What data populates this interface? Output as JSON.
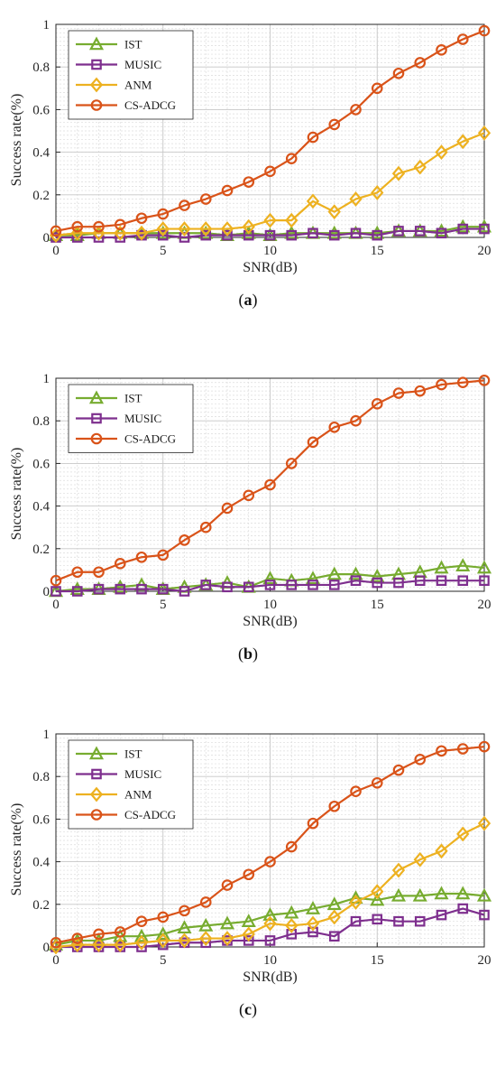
{
  "styles": {
    "IST": {
      "color": "#77AC30",
      "marker": "triangle"
    },
    "MUSIC": {
      "color": "#7E2F8E",
      "marker": "square"
    },
    "ANM": {
      "color": "#EDB120",
      "marker": "diamond"
    },
    "CS-ADCG": {
      "color": "#D95319",
      "marker": "circle"
    }
  },
  "chart_data": [
    {
      "type": "line",
      "caption_letter": "a",
      "xlabel": "SNR(dB)",
      "ylabel": "Success rate(%)",
      "xlim": [
        0,
        20
      ],
      "ylim": [
        0,
        1
      ],
      "xticks": [
        0,
        5,
        10,
        15,
        20
      ],
      "yticks": [
        0,
        0.2,
        0.4,
        0.6,
        0.8,
        1
      ],
      "grid": true,
      "legend_position": "top-left",
      "x": [
        0,
        1,
        2,
        3,
        4,
        5,
        6,
        7,
        8,
        9,
        10,
        11,
        12,
        13,
        14,
        15,
        16,
        17,
        18,
        19,
        20
      ],
      "series": [
        {
          "name": "IST",
          "values": [
            0.01,
            0.01,
            0.02,
            0.02,
            0.02,
            0.02,
            0.02,
            0.02,
            0.01,
            0.02,
            0.01,
            0.02,
            0.02,
            0.02,
            0.02,
            0.02,
            0.03,
            0.03,
            0.03,
            0.05,
            0.05
          ]
        },
        {
          "name": "MUSIC",
          "values": [
            0.0,
            0.0,
            0.0,
            0.0,
            0.01,
            0.01,
            0.0,
            0.01,
            0.01,
            0.01,
            0.01,
            0.01,
            0.02,
            0.01,
            0.02,
            0.01,
            0.03,
            0.03,
            0.02,
            0.04,
            0.04
          ]
        },
        {
          "name": "ANM",
          "values": [
            0.01,
            0.02,
            0.02,
            0.02,
            0.02,
            0.04,
            0.04,
            0.04,
            0.04,
            0.05,
            0.08,
            0.08,
            0.17,
            0.12,
            0.18,
            0.21,
            0.3,
            0.33,
            0.4,
            0.45,
            0.49
          ]
        },
        {
          "name": "CS-ADCG",
          "values": [
            0.03,
            0.05,
            0.05,
            0.06,
            0.09,
            0.11,
            0.15,
            0.18,
            0.22,
            0.26,
            0.31,
            0.37,
            0.47,
            0.53,
            0.6,
            0.7,
            0.77,
            0.82,
            0.88,
            0.93,
            0.97
          ]
        }
      ]
    },
    {
      "type": "line",
      "caption_letter": "b",
      "xlabel": "SNR(dB)",
      "ylabel": "Success rate(%)",
      "xlim": [
        0,
        20
      ],
      "ylim": [
        0,
        1
      ],
      "xticks": [
        0,
        5,
        10,
        15,
        20
      ],
      "yticks": [
        0,
        0.2,
        0.4,
        0.6,
        0.8,
        1
      ],
      "grid": true,
      "legend_position": "top-left",
      "x": [
        0,
        1,
        2,
        3,
        4,
        5,
        6,
        7,
        8,
        9,
        10,
        11,
        12,
        13,
        14,
        15,
        16,
        17,
        18,
        19,
        20
      ],
      "series": [
        {
          "name": "IST",
          "values": [
            0.0,
            0.01,
            0.01,
            0.02,
            0.03,
            0.01,
            0.02,
            0.03,
            0.04,
            0.02,
            0.06,
            0.05,
            0.06,
            0.08,
            0.08,
            0.07,
            0.08,
            0.09,
            0.11,
            0.12,
            0.11
          ]
        },
        {
          "name": "MUSIC",
          "values": [
            0.0,
            0.0,
            0.01,
            0.01,
            0.01,
            0.01,
            0.0,
            0.03,
            0.02,
            0.02,
            0.03,
            0.03,
            0.03,
            0.03,
            0.05,
            0.04,
            0.04,
            0.05,
            0.05,
            0.05,
            0.05
          ]
        },
        {
          "name": "CS-ADCG",
          "values": [
            0.05,
            0.09,
            0.09,
            0.13,
            0.16,
            0.17,
            0.24,
            0.3,
            0.39,
            0.45,
            0.5,
            0.6,
            0.7,
            0.77,
            0.8,
            0.88,
            0.93,
            0.94,
            0.97,
            0.98,
            0.99
          ]
        }
      ]
    },
    {
      "type": "line",
      "caption_letter": "c",
      "xlabel": "SNR(dB)",
      "ylabel": "Success rate(%)",
      "xlim": [
        0,
        20
      ],
      "ylim": [
        0,
        1
      ],
      "xticks": [
        0,
        5,
        10,
        15,
        20
      ],
      "yticks": [
        0,
        0.2,
        0.4,
        0.6,
        0.8,
        1
      ],
      "grid": true,
      "legend_position": "top-left",
      "x": [
        0,
        1,
        2,
        3,
        4,
        5,
        6,
        7,
        8,
        9,
        10,
        11,
        12,
        13,
        14,
        15,
        16,
        17,
        18,
        19,
        20
      ],
      "series": [
        {
          "name": "IST",
          "values": [
            0.01,
            0.03,
            0.03,
            0.05,
            0.05,
            0.06,
            0.09,
            0.1,
            0.11,
            0.12,
            0.15,
            0.16,
            0.18,
            0.2,
            0.23,
            0.22,
            0.24,
            0.24,
            0.25,
            0.25,
            0.24
          ]
        },
        {
          "name": "MUSIC",
          "values": [
            0.0,
            0.0,
            0.0,
            0.0,
            0.0,
            0.01,
            0.02,
            0.02,
            0.03,
            0.03,
            0.03,
            0.06,
            0.07,
            0.05,
            0.12,
            0.13,
            0.12,
            0.12,
            0.15,
            0.18,
            0.15
          ]
        },
        {
          "name": "ANM",
          "values": [
            0.0,
            0.01,
            0.01,
            0.01,
            0.02,
            0.03,
            0.03,
            0.04,
            0.04,
            0.06,
            0.11,
            0.1,
            0.11,
            0.14,
            0.21,
            0.26,
            0.36,
            0.41,
            0.45,
            0.53,
            0.58
          ]
        },
        {
          "name": "CS-ADCG",
          "values": [
            0.02,
            0.04,
            0.06,
            0.07,
            0.12,
            0.14,
            0.17,
            0.21,
            0.29,
            0.34,
            0.4,
            0.47,
            0.58,
            0.66,
            0.73,
            0.77,
            0.83,
            0.88,
            0.92,
            0.93,
            0.94
          ]
        }
      ]
    }
  ]
}
